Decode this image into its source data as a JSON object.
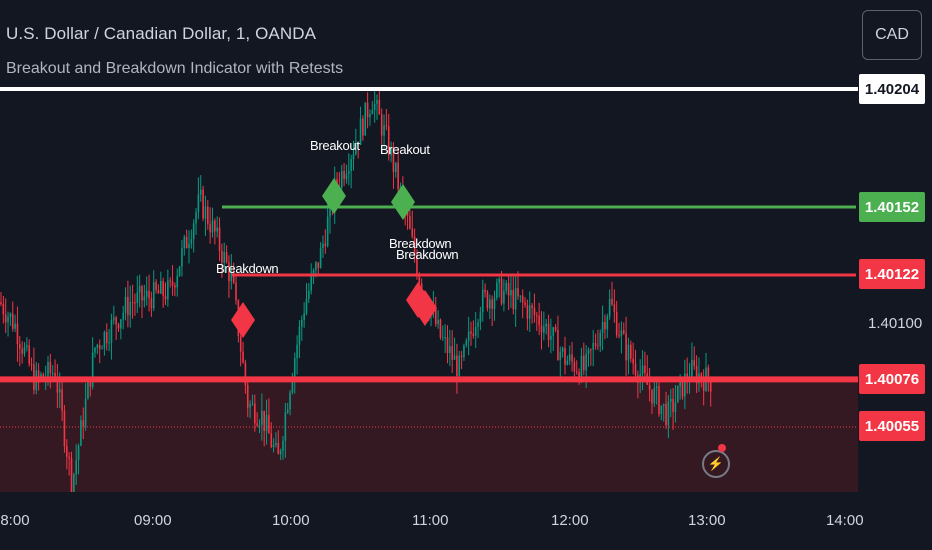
{
  "header": {
    "symbol_title": "U.S. Dollar / Canadian Dollar, 1, OANDA",
    "indicator_title": "Breakout and Breakdown Indicator with Retests"
  },
  "currency_button": {
    "label": "CAD"
  },
  "price_axis": {
    "tags": [
      {
        "price": 1.40204,
        "label": "1.40204",
        "bg": "#ffffff",
        "fg": "#131722"
      },
      {
        "price": 1.40152,
        "label": "1.40152",
        "bg": "#4caf50",
        "fg": "#ffffff"
      },
      {
        "price": 1.40122,
        "label": "1.40122",
        "bg": "#f23645",
        "fg": "#ffffff"
      },
      {
        "price": 1.40076,
        "label": "1.40076",
        "bg": "#f23645",
        "fg": "#ffffff"
      },
      {
        "price": 1.40055,
        "label": "1.40055",
        "bg": "#f23645",
        "fg": "#ffffff"
      }
    ],
    "ticks": [
      "1.40100"
    ]
  },
  "time_axis": {
    "ticks": [
      "08:00",
      "09:00",
      "10:00",
      "11:00",
      "12:00",
      "13:00",
      "14:00"
    ]
  },
  "signals": {
    "breakout_label": "Breakout",
    "breakdown_label": "Breakdown"
  },
  "colors": {
    "background": "#131722",
    "bull": "#089981",
    "bear": "#f23645",
    "green_level": "#4caf50",
    "red_level": "#f23645",
    "white_level": "#ffffff",
    "zone_fill": "#3a1a22"
  },
  "icons": {
    "replay": "lightning-icon"
  }
}
